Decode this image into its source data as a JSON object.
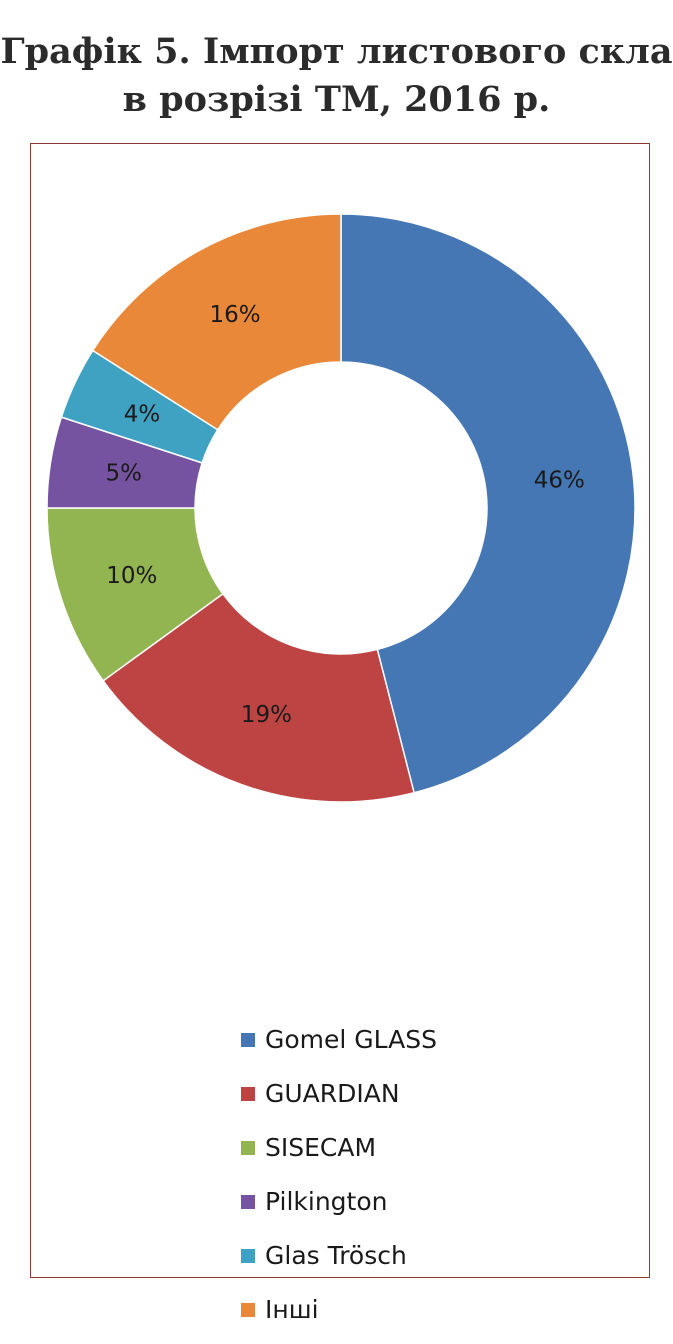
{
  "title": {
    "line1": "Графік 5. Імпорт листового скла",
    "line2": "в розрізі ТМ, 2016 р."
  },
  "chart_data": {
    "type": "pie",
    "variant": "donut",
    "unit": "%",
    "legend_position": "bottom",
    "slices": [
      {
        "name": "Gomel GLASS",
        "value": 46,
        "label": "46%",
        "color": "#4477b4"
      },
      {
        "name": "GUARDIAN",
        "value": 19,
        "label": "19%",
        "color": "#bd4442"
      },
      {
        "name": "SISECAM",
        "value": 10,
        "label": "10%",
        "color": "#93b551"
      },
      {
        "name": "Pilkington",
        "value": 5,
        "label": "5%",
        "color": "#7553a0"
      },
      {
        "name": "Glas Trösch",
        "value": 4,
        "label": "4%",
        "color": "#3fa2c2"
      },
      {
        "name": "Інші",
        "value": 16,
        "label": "16%",
        "color": "#e88838"
      }
    ]
  }
}
